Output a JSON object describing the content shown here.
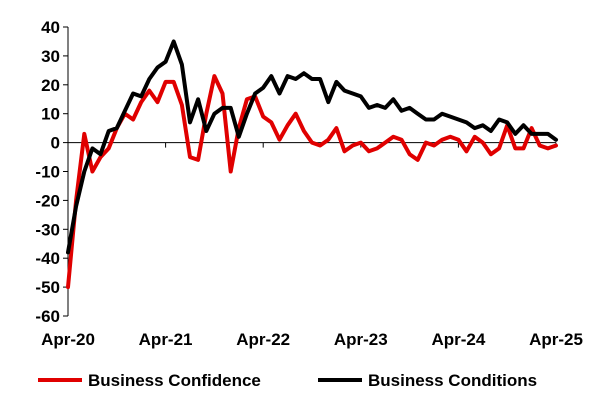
{
  "chart_data": {
    "type": "line",
    "title": "",
    "xlabel": "",
    "ylabel": "",
    "ylim": [
      -60,
      40
    ],
    "yticks": [
      40,
      30,
      20,
      10,
      0,
      -10,
      -20,
      -30,
      -40,
      -50,
      -60
    ],
    "x_start": "Apr-20",
    "x_end": "May-25",
    "xtick_labels": [
      "Apr-20",
      "Apr-21",
      "Apr-22",
      "Apr-23",
      "Apr-24",
      "Apr-25"
    ],
    "legend_position": "bottom",
    "grid": false,
    "series": [
      {
        "name": "Business Confidence",
        "color": "#e00000",
        "values": [
          -50,
          -20,
          3,
          -10,
          -5,
          -2,
          5,
          10,
          8,
          14,
          18,
          14,
          21,
          21,
          13,
          -5,
          -6,
          10,
          23,
          17,
          -10,
          5,
          15,
          16,
          9,
          7,
          1,
          6,
          10,
          4,
          0,
          -1,
          1,
          5,
          -3,
          -1,
          0,
          -3,
          -2,
          0,
          2,
          1,
          -4,
          -6,
          0,
          -1,
          1,
          2,
          1,
          -3,
          2,
          0,
          -4,
          -2,
          6,
          -2,
          -2,
          5,
          -1,
          -2,
          -1
        ]
      },
      {
        "name": "Business Conditions",
        "color": "#000000",
        "values": [
          -38,
          -22,
          -10,
          -2,
          -4,
          4,
          5,
          11,
          17,
          16,
          22,
          26,
          28,
          35,
          27,
          7,
          15,
          4,
          10,
          12,
          12,
          2,
          10,
          17,
          19,
          23,
          17,
          23,
          22,
          24,
          22,
          22,
          14,
          21,
          18,
          17,
          16,
          12,
          13,
          12,
          15,
          11,
          12,
          10,
          8,
          8,
          10,
          9,
          8,
          7,
          5,
          6,
          4,
          8,
          7,
          3,
          6,
          3,
          3,
          3,
          1
        ]
      }
    ]
  }
}
